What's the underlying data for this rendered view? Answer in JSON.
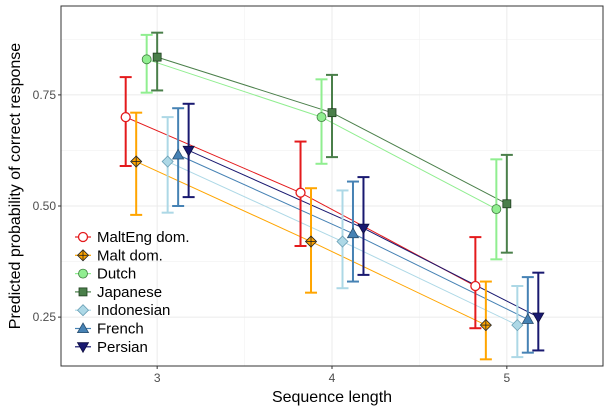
{
  "chart_data": {
    "type": "line",
    "xlabel": "Sequence length",
    "ylabel": "Predicted probability of correct response",
    "x": [
      3,
      4,
      5
    ],
    "xticks": [
      "3",
      "4",
      "5"
    ],
    "yticks": [
      "0.25",
      "0.50",
      "0.75"
    ],
    "ytick_values": [
      0.25,
      0.5,
      0.75
    ],
    "xlim": [
      2.45,
      5.55
    ],
    "ylim": [
      0.14,
      0.95
    ],
    "grid": true,
    "legend_position": "bottom-left",
    "series": [
      {
        "name": "MaltEng dom.",
        "color": "#e41a1c",
        "marker": "circle-open",
        "offset": -0.18,
        "values": [
          0.7,
          0.53,
          0.32
        ],
        "lower": [
          0.59,
          0.41,
          0.225
        ],
        "upper": [
          0.79,
          0.645,
          0.43
        ]
      },
      {
        "name": "Malt dom.",
        "color": "#ffa500",
        "marker": "diamond-orange",
        "offset": -0.12,
        "values": [
          0.6,
          0.42,
          0.232
        ],
        "lower": [
          0.48,
          0.305,
          0.155
        ],
        "upper": [
          0.71,
          0.54,
          0.33
        ]
      },
      {
        "name": "Dutch",
        "color": "#90ee90",
        "marker": "circle-filled",
        "offset": -0.06,
        "values": [
          0.83,
          0.7,
          0.493
        ],
        "lower": [
          0.755,
          0.595,
          0.38
        ],
        "upper": [
          0.885,
          0.785,
          0.605
        ]
      },
      {
        "name": "Japanese",
        "color": "#4a7f4a",
        "marker": "square",
        "offset": 0.0,
        "values": [
          0.835,
          0.71,
          0.505
        ],
        "lower": [
          0.76,
          0.61,
          0.395
        ],
        "upper": [
          0.89,
          0.795,
          0.615
        ]
      },
      {
        "name": "Indonesian",
        "color": "#add8e6",
        "marker": "diamond-light",
        "offset": 0.06,
        "values": [
          0.6,
          0.42,
          0.232
        ],
        "lower": [
          0.485,
          0.315,
          0.16
        ],
        "upper": [
          0.7,
          0.535,
          0.32
        ]
      },
      {
        "name": "French",
        "color": "#4682b4",
        "marker": "triangle-up",
        "offset": 0.12,
        "values": [
          0.615,
          0.438,
          0.245
        ],
        "lower": [
          0.5,
          0.33,
          0.17
        ],
        "upper": [
          0.72,
          0.555,
          0.34
        ]
      },
      {
        "name": "Persian",
        "color": "#191970",
        "marker": "triangle-down",
        "offset": 0.18,
        "values": [
          0.625,
          0.45,
          0.25
        ],
        "lower": [
          0.52,
          0.345,
          0.175
        ],
        "upper": [
          0.73,
          0.565,
          0.35
        ]
      }
    ]
  }
}
